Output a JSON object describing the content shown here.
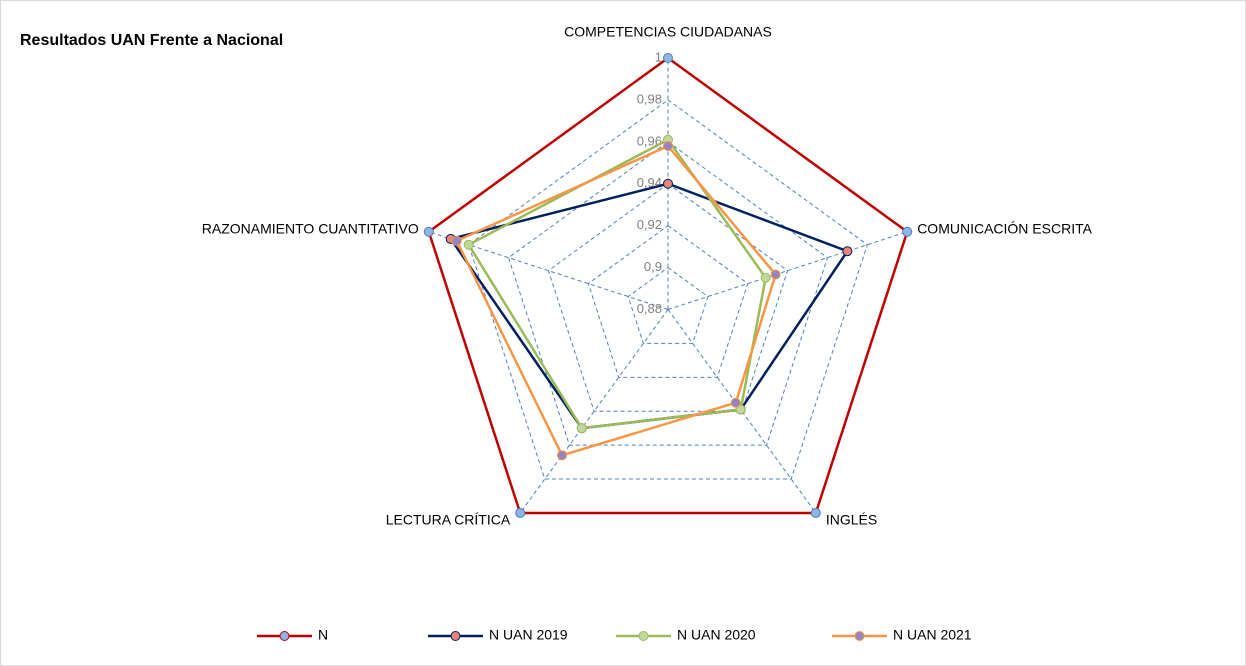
{
  "chart_data": {
    "type": "radar",
    "title": "Resultados UAN Frente a Nacional",
    "categories": [
      "COMPETENCIAS CIUDADANAS",
      "COMUNICACIÓN ESCRITA",
      "INGLÉS",
      "LECTURA CRÍTICA",
      "RAZONAMIENTO CUANTITATIVO"
    ],
    "rlim": [
      0.88,
      1
    ],
    "rticks": [
      {
        "value": 0.88,
        "label": "0,88"
      },
      {
        "value": 0.9,
        "label": "0,9"
      },
      {
        "value": 0.92,
        "label": "0,92"
      },
      {
        "value": 0.94,
        "label": "0,94"
      },
      {
        "value": 0.96,
        "label": "0,96"
      },
      {
        "value": 0.98,
        "label": "0,98"
      },
      1
    ],
    "grid": true,
    "legend": "bottom",
    "series": [
      {
        "name": "N",
        "color": "#c00000",
        "marker_color": "#8eb4e3",
        "values": [
          1,
          1,
          1,
          1,
          1
        ]
      },
      {
        "name": "N UAN 2019",
        "color": "#002060",
        "marker_color": "#e6857a",
        "values": [
          0.94,
          0.97,
          0.939,
          0.95,
          0.989
        ]
      },
      {
        "name": "N UAN 2020",
        "color": "#9bbb59",
        "marker_color": "#c3d69b",
        "values": [
          0.961,
          0.929,
          0.939,
          0.95,
          0.98
        ]
      },
      {
        "name": "N UAN 2021",
        "color": "#f79646",
        "marker_color": "#9683c0",
        "values": [
          0.958,
          0.934,
          0.935,
          0.966,
          0.986
        ]
      }
    ]
  }
}
